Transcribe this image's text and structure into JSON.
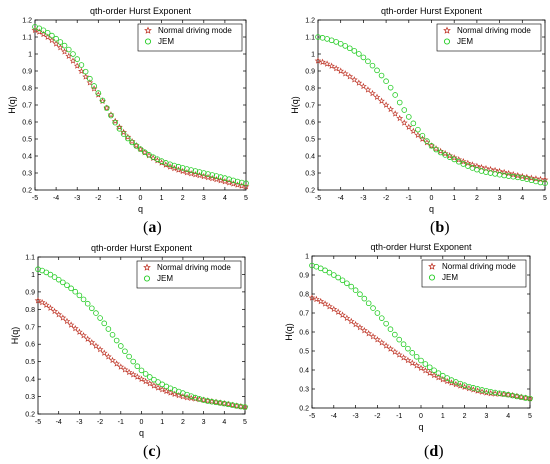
{
  "chart_data": [
    {
      "type": "scatter",
      "panel_label": "(a)",
      "title": "qth-order Hurst Exponent",
      "xlabel": "q",
      "ylabel": "H(q)",
      "xlim": [
        -5,
        5
      ],
      "ylim": [
        0.2,
        1.2
      ],
      "xticks": [
        -5,
        -4,
        -3,
        -2,
        -1,
        0,
        1,
        2,
        3,
        4,
        5
      ],
      "xticklabels": [
        "-5",
        "-4",
        "-3",
        "-2",
        "-1",
        "0",
        "1",
        "2",
        "3",
        "4",
        "5"
      ],
      "yticks": [
        0.2,
        0.3,
        0.4,
        0.5,
        0.6,
        0.7,
        0.8,
        0.9,
        1.0,
        1.1,
        1.2
      ],
      "yticklabels": [
        "0.2",
        "0.3",
        "0.4",
        "0.5",
        "0.6",
        "0.7",
        "0.8",
        "0.9",
        "1",
        "1.1",
        "1.2"
      ],
      "legend": "top-right",
      "grid": false,
      "series": [
        {
          "name": "Normal driving mode",
          "color": "#c0392b",
          "marker": "star",
          "x": [
            -5,
            -4,
            -3,
            -2,
            -1,
            0,
            1,
            2,
            3,
            4,
            5
          ],
          "y": [
            1.14,
            1.06,
            0.93,
            0.76,
            0.57,
            0.44,
            0.36,
            0.31,
            0.28,
            0.25,
            0.22
          ]
        },
        {
          "name": "JEM",
          "color": "#22cc22",
          "marker": "circle",
          "x": [
            -5,
            -4,
            -3,
            -2,
            -1,
            0,
            1,
            2,
            3,
            4,
            5
          ],
          "y": [
            1.16,
            1.09,
            0.97,
            0.77,
            0.56,
            0.44,
            0.37,
            0.33,
            0.3,
            0.27,
            0.24
          ]
        }
      ]
    },
    {
      "type": "scatter",
      "panel_label": "(b)",
      "title": "qth-order Hurst Exponent",
      "xlabel": "q",
      "ylabel": "H(q)",
      "xlim": [
        -5,
        5
      ],
      "ylim": [
        0.2,
        1.2
      ],
      "xticks": [
        -5,
        -4,
        -3,
        -2,
        -1,
        0,
        1,
        2,
        3,
        4,
        5
      ],
      "xticklabels": [
        "-5",
        "-4",
        "-3",
        "-2",
        "-1",
        "0",
        "1",
        "2",
        "3",
        "4",
        "5"
      ],
      "yticks": [
        0.2,
        0.3,
        0.4,
        0.5,
        0.6,
        0.7,
        0.8,
        0.9,
        1.0,
        1.1,
        1.2
      ],
      "yticklabels": [
        "0.2",
        "0.3",
        "0.4",
        "0.5",
        "0.6",
        "0.7",
        "0.8",
        "0.9",
        "1",
        "1.1",
        "1.2"
      ],
      "legend": "top-right",
      "grid": false,
      "series": [
        {
          "name": "Normal driving mode",
          "color": "#c0392b",
          "marker": "star",
          "x": [
            -5,
            -4,
            -3,
            -2,
            -1,
            0,
            1,
            2,
            3,
            4,
            5
          ],
          "y": [
            0.96,
            0.9,
            0.81,
            0.7,
            0.57,
            0.46,
            0.39,
            0.34,
            0.31,
            0.28,
            0.26
          ]
        },
        {
          "name": "JEM",
          "color": "#22cc22",
          "marker": "circle",
          "x": [
            -5,
            -4,
            -3,
            -2,
            -1,
            0,
            1,
            2,
            3,
            4,
            5
          ],
          "y": [
            1.1,
            1.06,
            0.98,
            0.84,
            0.63,
            0.46,
            0.38,
            0.32,
            0.29,
            0.27,
            0.24
          ]
        }
      ]
    },
    {
      "type": "scatter",
      "panel_label": "(c)",
      "title": "qth-order Hurst Exponent",
      "xlabel": "q",
      "ylabel": "H(q)",
      "xlim": [
        -5,
        5
      ],
      "ylim": [
        0.2,
        1.1
      ],
      "xticks": [
        -5,
        -4,
        -3,
        -2,
        -1,
        0,
        1,
        2,
        3,
        4,
        5
      ],
      "xticklabels": [
        "-5",
        "-4",
        "-3",
        "-2",
        "-1",
        "0",
        "1",
        "2",
        "3",
        "4",
        "5"
      ],
      "yticks": [
        0.2,
        0.3,
        0.4,
        0.5,
        0.6,
        0.7,
        0.8,
        0.9,
        1.0,
        1.1
      ],
      "yticklabels": [
        "0.2",
        "0.3",
        "0.4",
        "0.5",
        "0.6",
        "0.7",
        "0.8",
        "0.9",
        "1",
        "1.1"
      ],
      "legend": "top-right",
      "grid": false,
      "series": [
        {
          "name": "Normal driving mode",
          "color": "#c0392b",
          "marker": "star",
          "x": [
            -5,
            -4,
            -3,
            -2,
            -1,
            0,
            1,
            2,
            3,
            4,
            5
          ],
          "y": [
            0.85,
            0.77,
            0.67,
            0.57,
            0.47,
            0.4,
            0.34,
            0.3,
            0.28,
            0.26,
            0.24
          ]
        },
        {
          "name": "JEM",
          "color": "#22cc22",
          "marker": "circle",
          "x": [
            -5,
            -4,
            -3,
            -2,
            -1,
            0,
            1,
            2,
            3,
            4,
            5
          ],
          "y": [
            1.03,
            0.97,
            0.88,
            0.75,
            0.59,
            0.45,
            0.37,
            0.32,
            0.28,
            0.26,
            0.24
          ]
        }
      ]
    },
    {
      "type": "scatter",
      "panel_label": "(d)",
      "title": "qth-order Hurst Exponent",
      "xlabel": "q",
      "ylabel": "H(q)",
      "xlim": [
        -5,
        5
      ],
      "ylim": [
        0.2,
        1.0
      ],
      "xticks": [
        -5,
        -4,
        -3,
        -2,
        -1,
        0,
        1,
        2,
        3,
        4,
        5
      ],
      "xticklabels": [
        "-5",
        "-4",
        "-3",
        "-2",
        "-1",
        "0",
        "1",
        "2",
        "3",
        "4",
        "5"
      ],
      "yticks": [
        0.2,
        0.3,
        0.4,
        0.5,
        0.6,
        0.7,
        0.8,
        0.9,
        1.0
      ],
      "yticklabels": [
        "0.2",
        "0.3",
        "0.4",
        "0.5",
        "0.6",
        "0.7",
        "0.8",
        "0.9",
        "1"
      ],
      "legend": "top-right",
      "grid": false,
      "series": [
        {
          "name": "Normal driving mode",
          "color": "#c0392b",
          "marker": "star",
          "x": [
            -5,
            -4,
            -3,
            -2,
            -1,
            0,
            1,
            2,
            3,
            4,
            5
          ],
          "y": [
            0.78,
            0.72,
            0.64,
            0.56,
            0.48,
            0.41,
            0.35,
            0.31,
            0.28,
            0.27,
            0.25
          ]
        },
        {
          "name": "JEM",
          "color": "#22cc22",
          "marker": "circle",
          "x": [
            -5,
            -4,
            -3,
            -2,
            -1,
            0,
            1,
            2,
            3,
            4,
            5
          ],
          "y": [
            0.95,
            0.9,
            0.82,
            0.7,
            0.56,
            0.45,
            0.37,
            0.32,
            0.29,
            0.27,
            0.25
          ]
        }
      ]
    }
  ]
}
